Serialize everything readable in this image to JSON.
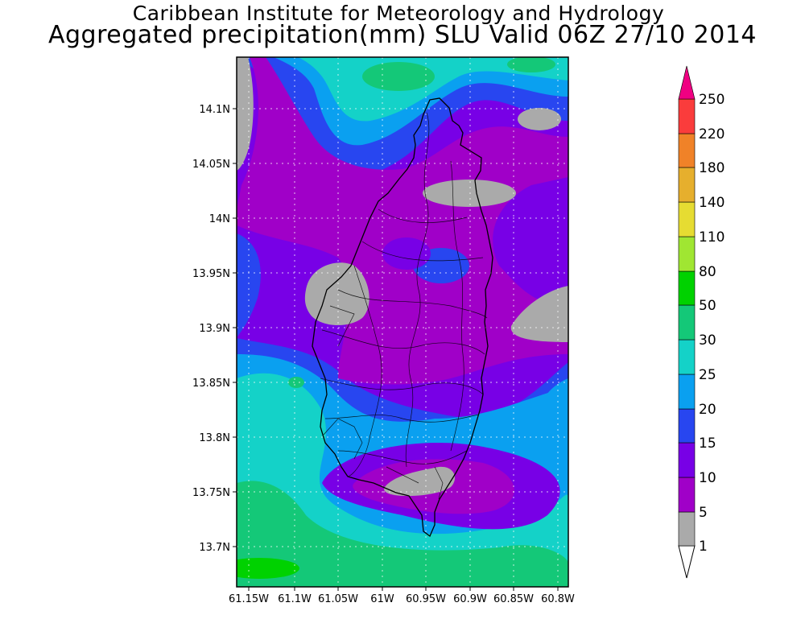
{
  "header": {
    "institute": "Caribbean Institute for Meteorology and Hydrology",
    "product": "Aggregated precipitation(mm) SLU Valid 06Z 27/10 2014"
  },
  "map": {
    "lat_ticks": [
      "14.1N",
      "14.05N",
      "14N",
      "13.95N",
      "13.9N",
      "13.85N",
      "13.8N",
      "13.75N",
      "13.7N"
    ],
    "lon_ticks": [
      "61.15W",
      "61.1W",
      "61.05W",
      "61W",
      "60.95W",
      "60.9W",
      "60.85W",
      "60.8W"
    ]
  },
  "legend": {
    "levels": [
      "1",
      "5",
      "10",
      "15",
      "20",
      "25",
      "30",
      "50",
      "80",
      "110",
      "140",
      "180",
      "220",
      "250"
    ],
    "colors": [
      "#aaaaaa",
      "#a000c8",
      "#7800e6",
      "#2846f0",
      "#0aa0f0",
      "#14d2c8",
      "#14c878",
      "#00d200",
      "#a0e632",
      "#e6dc32",
      "#e6af2d",
      "#f08228",
      "#fa3c3c",
      "#f00082"
    ]
  }
}
